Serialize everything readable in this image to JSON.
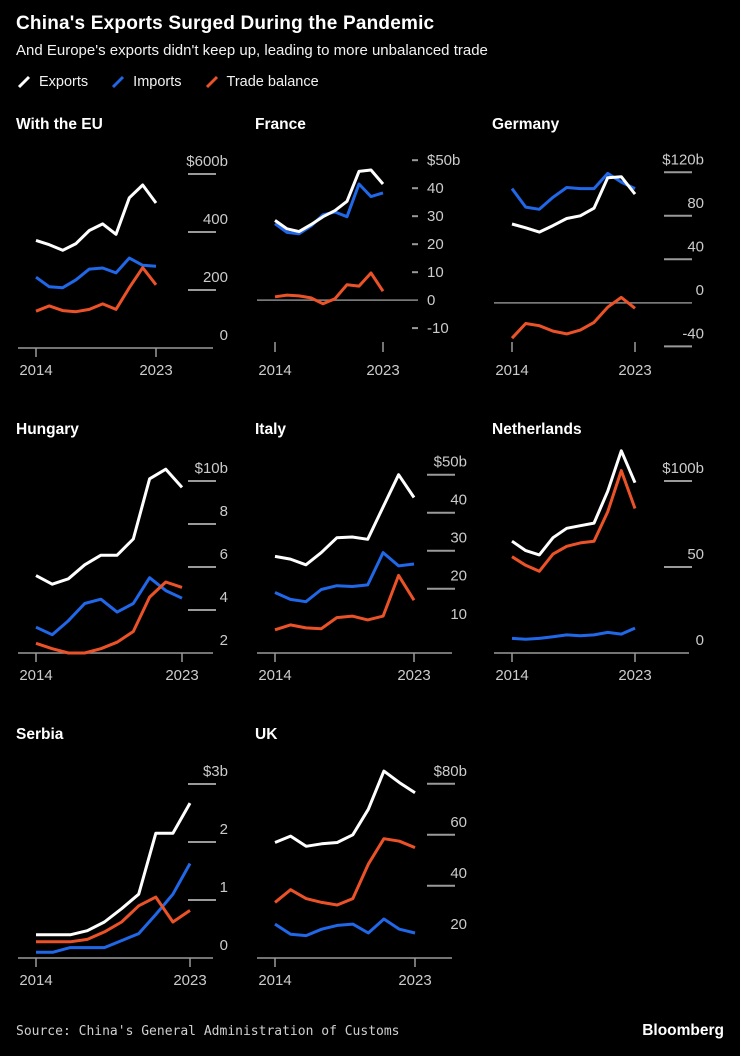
{
  "header": {
    "title": "China's Exports Surged During the Pandemic",
    "subtitle": "And Europe's exports didn't keep up, leading to more unbalanced trade"
  },
  "legend": {
    "items": [
      {
        "label": "Exports",
        "color": "#ffffff"
      },
      {
        "label": "Imports",
        "color": "#2068e8"
      },
      {
        "label": "Trade balance",
        "color": "#ec5228"
      }
    ]
  },
  "footer": {
    "source": "Source: China's General Administration of Customs",
    "brand": "Bloomberg"
  },
  "chart_data": [
    {
      "type": "line",
      "title": "With the EU",
      "unit": "USD billions",
      "x": [
        2014,
        2015,
        2016,
        2017,
        2018,
        2019,
        2020,
        2021,
        2022,
        2023
      ],
      "x_labels": [
        "2014",
        "2023"
      ],
      "ylim": [
        0,
        662
      ],
      "yticks": {
        "values": [
          600,
          400,
          200,
          0
        ],
        "labels": [
          "$600b",
          "400",
          "200",
          "0"
        ]
      },
      "tick_style": "under",
      "baseline": true,
      "zero_line": false,
      "series": [
        {
          "name": "Exports",
          "color": "#ffffff",
          "values": [
            371,
            356,
            337,
            360,
            405,
            428,
            392,
            518,
            562,
            500
          ]
        },
        {
          "name": "Imports",
          "color": "#2068e8",
          "values": [
            244,
            211,
            208,
            235,
            272,
            276,
            259,
            310,
            285,
            282
          ]
        },
        {
          "name": "Trade balance",
          "color": "#ec5228",
          "values": [
            127,
            145,
            129,
            125,
            133,
            152,
            133,
            208,
            277,
            218
          ]
        }
      ]
    },
    {
      "type": "line",
      "title": "France",
      "unit": "USD billions",
      "x": [
        2014,
        2015,
        2016,
        2017,
        2018,
        2019,
        2020,
        2021,
        2022,
        2023
      ],
      "x_labels": [
        "2014",
        "2023"
      ],
      "ylim": [
        -17.1,
        51.5
      ],
      "yticks": {
        "values": [
          50,
          40,
          30,
          20,
          10,
          0,
          -10
        ],
        "labels": [
          "$50b",
          "40",
          "30",
          "20",
          "10",
          "0",
          "-10"
        ]
      },
      "tick_style": "inline",
      "baseline": false,
      "zero_line": true,
      "series": [
        {
          "name": "Exports",
          "color": "#ffffff",
          "values": [
            28.5,
            25.5,
            24.5,
            27,
            29.8,
            32,
            35.3,
            46,
            46.5,
            41.5
          ]
        },
        {
          "name": "Imports",
          "color": "#2068e8",
          "values": [
            27.3,
            24.2,
            23.7,
            26.5,
            30.5,
            31.5,
            29.8,
            41.5,
            37,
            38.3
          ]
        },
        {
          "name": "Trade balance",
          "color": "#ec5228",
          "values": [
            1.2,
            1.8,
            1.5,
            0.8,
            -1.3,
            0.5,
            5.5,
            5,
            9.7,
            3.2
          ]
        }
      ]
    },
    {
      "type": "line",
      "title": "Germany",
      "unit": "USD billions",
      "x": [
        2014,
        2015,
        2016,
        2017,
        2018,
        2019,
        2020,
        2021,
        2022,
        2023
      ],
      "x_labels": [
        "2014",
        "2023"
      ],
      "ylim": [
        -41.5,
        135
      ],
      "yticks": {
        "values": [
          120,
          80,
          40,
          0,
          -40
        ],
        "labels": [
          "$120b",
          "80",
          "40",
          "0",
          "-40"
        ]
      },
      "tick_style": "under",
      "baseline": false,
      "zero_line": true,
      "series": [
        {
          "name": "Exports",
          "color": "#ffffff",
          "values": [
            72.5,
            69,
            65,
            71,
            77.5,
            80,
            87,
            115,
            116,
            100
          ]
        },
        {
          "name": "Imports",
          "color": "#2068e8",
          "values": [
            105,
            88,
            86,
            97,
            106,
            105,
            105,
            119,
            111,
            105
          ]
        },
        {
          "name": "Trade balance",
          "color": "#ec5228",
          "values": [
            -32.5,
            -19,
            -21,
            -26,
            -28.5,
            -25,
            -18,
            -4,
            5,
            -5
          ]
        }
      ]
    },
    {
      "type": "line",
      "title": "Hungary",
      "unit": "USD billions",
      "x": [
        2014,
        2015,
        2016,
        2017,
        2018,
        2019,
        2020,
        2021,
        2022,
        2023
      ],
      "x_labels": [
        "2014",
        "2023"
      ],
      "ylim": [
        2,
        10.93
      ],
      "yticks": {
        "values": [
          10,
          8,
          6,
          4,
          2
        ],
        "labels": [
          "$10b",
          "8",
          "6",
          "4",
          "2"
        ]
      },
      "tick_style": "under",
      "baseline": true,
      "zero_line": false,
      "series": [
        {
          "name": "Exports",
          "color": "#ffffff",
          "values": [
            5.6,
            5.2,
            5.45,
            6.1,
            6.55,
            6.55,
            7.3,
            10.1,
            10.55,
            9.7
          ]
        },
        {
          "name": "Imports",
          "color": "#2068e8",
          "values": [
            3.2,
            2.85,
            3.5,
            4.3,
            4.5,
            3.9,
            4.3,
            5.5,
            4.9,
            4.55
          ]
        },
        {
          "name": "Trade balance",
          "color": "#ec5228",
          "values": [
            2.45,
            2.2,
            2.0,
            2.0,
            2.2,
            2.5,
            3.0,
            4.6,
            5.3,
            5.05
          ]
        }
      ]
    },
    {
      "type": "line",
      "title": "Italy",
      "unit": "USD billions",
      "x": [
        2014,
        2015,
        2016,
        2017,
        2018,
        2019,
        2020,
        2021,
        2022,
        2023
      ],
      "x_labels": [
        "2014",
        "2023"
      ],
      "ylim": [
        3.1,
        53.6
      ],
      "yticks": {
        "values": [
          50,
          40,
          30,
          20,
          10
        ],
        "labels": [
          "$50b",
          "40",
          "30",
          "20",
          "10"
        ]
      },
      "tick_style": "under",
      "baseline": true,
      "zero_line": false,
      "series": [
        {
          "name": "Exports",
          "color": "#ffffff",
          "values": [
            28.5,
            27.8,
            26.3,
            29.5,
            33.4,
            33.6,
            33,
            41.5,
            50,
            44
          ]
        },
        {
          "name": "Imports",
          "color": "#2068e8",
          "values": [
            19,
            17.2,
            16.6,
            19.8,
            20.8,
            20.6,
            21,
            29.5,
            26,
            26.5
          ]
        },
        {
          "name": "Trade balance",
          "color": "#ec5228",
          "values": [
            9.2,
            10.5,
            9.7,
            9.5,
            12.4,
            12.8,
            11.8,
            12.8,
            23.5,
            17
          ]
        }
      ]
    },
    {
      "type": "line",
      "title": "Netherlands",
      "unit": "USD billions",
      "x": [
        2014,
        2015,
        2016,
        2017,
        2018,
        2019,
        2020,
        2021,
        2022,
        2023
      ],
      "x_labels": [
        "2014",
        "2023"
      ],
      "ylim": [
        0,
        111.6
      ],
      "yticks": {
        "values": [
          100,
          50,
          0
        ],
        "labels": [
          "$100b",
          "50",
          "0"
        ]
      },
      "tick_style": "under",
      "baseline": true,
      "zero_line": false,
      "series": [
        {
          "name": "Exports",
          "color": "#ffffff",
          "values": [
            65,
            59.5,
            57,
            67,
            72.5,
            74,
            75.5,
            94,
            117.5,
            99
          ]
        },
        {
          "name": "Imports",
          "color": "#2068e8",
          "values": [
            8.5,
            8,
            8.5,
            9.5,
            10.5,
            10,
            10.5,
            12,
            11,
            14.5
          ]
        },
        {
          "name": "Trade balance",
          "color": "#ec5228",
          "values": [
            56,
            51,
            47.5,
            57.5,
            62,
            64,
            65,
            82,
            106,
            84
          ]
        }
      ]
    },
    {
      "type": "line",
      "title": "Serbia",
      "unit": "USD billions",
      "x": [
        2014,
        2015,
        2016,
        2017,
        2018,
        2019,
        2020,
        2021,
        2022,
        2023
      ],
      "x_labels": [
        "2014",
        "2023"
      ],
      "ylim": [
        0,
        3.31
      ],
      "yticks": {
        "values": [
          3,
          2,
          1,
          0
        ],
        "labels": [
          "$3b",
          "2",
          "1",
          "0"
        ]
      },
      "tick_style": "under",
      "baseline": true,
      "zero_line": false,
      "series": [
        {
          "name": "Exports",
          "color": "#ffffff",
          "values": [
            0.4,
            0.4,
            0.4,
            0.47,
            0.62,
            0.85,
            1.1,
            2.15,
            2.15,
            2.67
          ]
        },
        {
          "name": "Imports",
          "color": "#2068e8",
          "values": [
            0.1,
            0.1,
            0.18,
            0.18,
            0.18,
            0.3,
            0.42,
            0.75,
            1.1,
            1.63
          ]
        },
        {
          "name": "Trade balance",
          "color": "#ec5228",
          "values": [
            0.28,
            0.28,
            0.28,
            0.32,
            0.45,
            0.62,
            0.9,
            1.05,
            0.62,
            0.82
          ]
        }
      ]
    },
    {
      "type": "line",
      "title": "UK",
      "unit": "USD billions",
      "x": [
        2014,
        2015,
        2016,
        2017,
        2018,
        2019,
        2020,
        2021,
        2022,
        2023
      ],
      "x_labels": [
        "2014",
        "2023"
      ],
      "ylim": [
        11.7,
        87
      ],
      "yticks": {
        "values": [
          80,
          60,
          40,
          20
        ],
        "labels": [
          "$80b",
          "60",
          "40",
          "20"
        ]
      },
      "tick_style": "under",
      "baseline": true,
      "zero_line": false,
      "series": [
        {
          "name": "Exports",
          "color": "#ffffff",
          "values": [
            57,
            59.5,
            55.5,
            56.5,
            57,
            60,
            70,
            85,
            80.5,
            76.5
          ]
        },
        {
          "name": "Imports",
          "color": "#2068e8",
          "values": [
            25,
            21,
            20.5,
            23,
            24.5,
            25,
            21.5,
            27,
            23,
            21.5
          ]
        },
        {
          "name": "Trade balance",
          "color": "#ec5228",
          "values": [
            33.5,
            38.5,
            35,
            33.5,
            32.5,
            35,
            48.5,
            58.5,
            57.5,
            55
          ]
        }
      ]
    }
  ]
}
